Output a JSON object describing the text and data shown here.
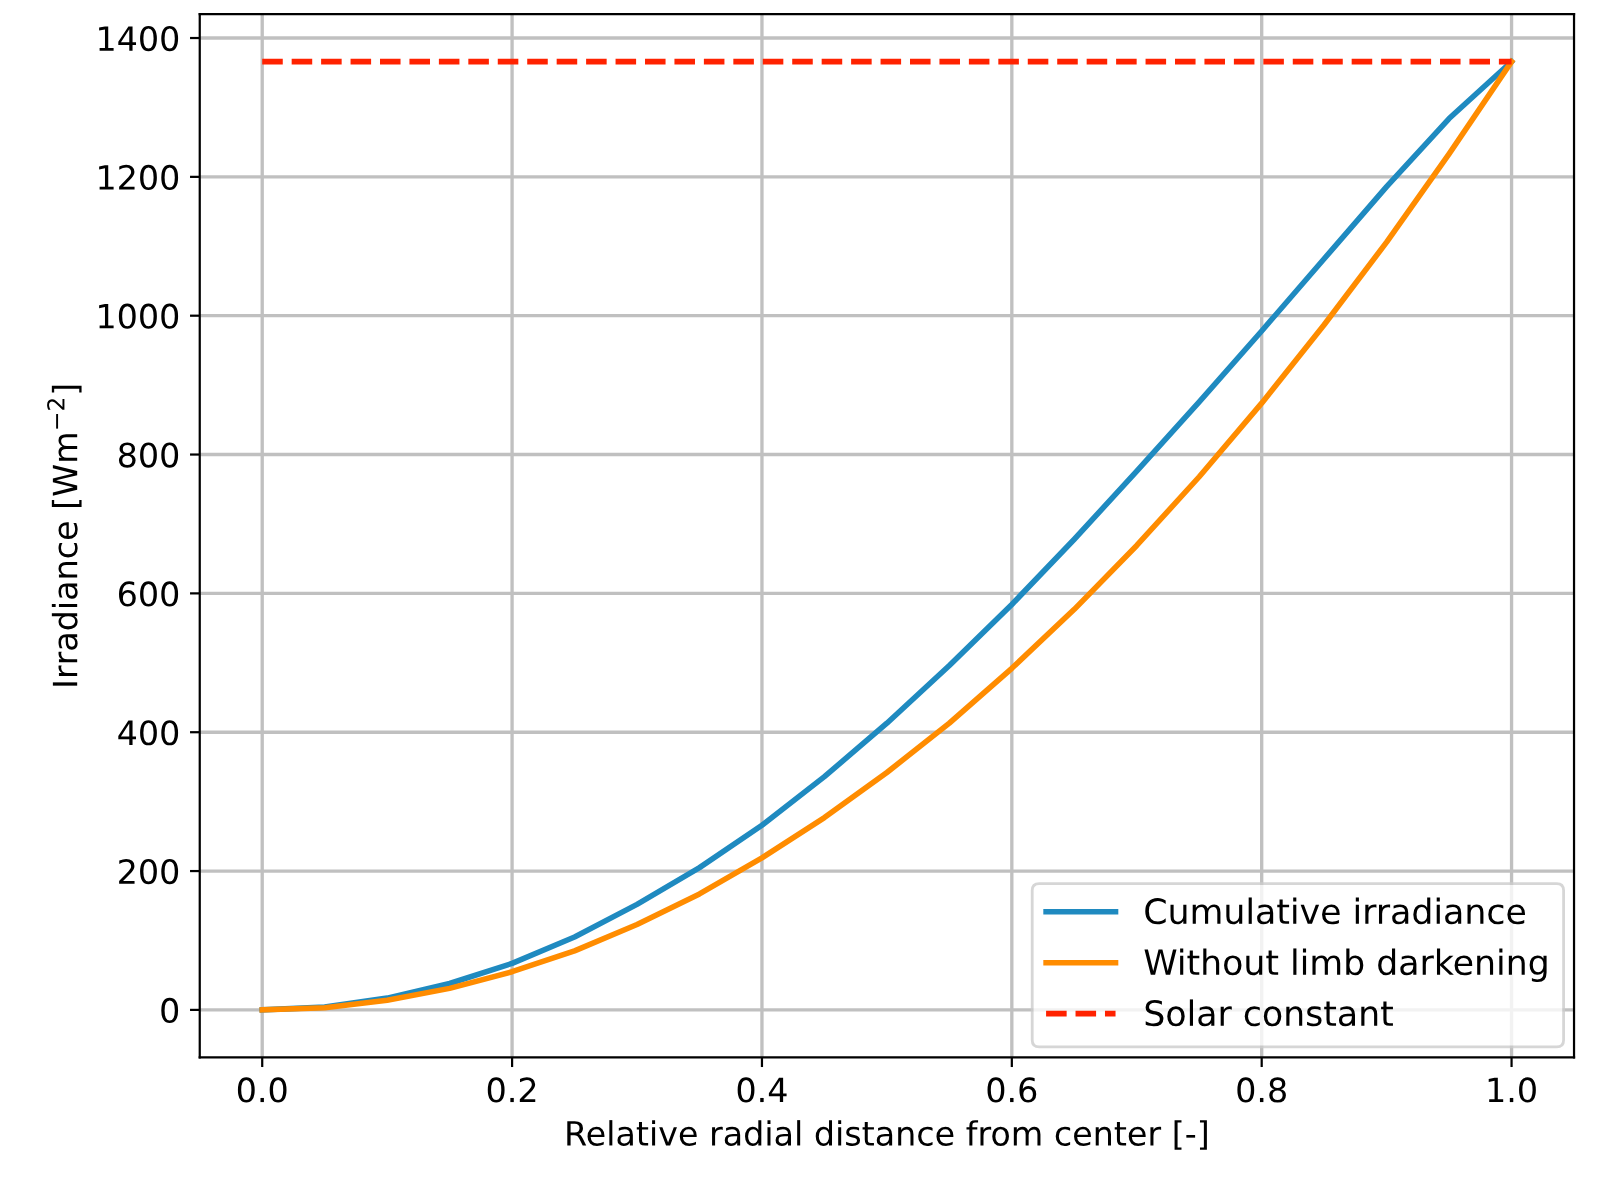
{
  "chart_data": {
    "type": "line",
    "xlabel": "Relative radial distance from center [-]",
    "ylabel": "Irradiance [Wm$^{−2}$]",
    "x": [
      0,
      0.05,
      0.1,
      0.15,
      0.2,
      0.25,
      0.3,
      0.35,
      0.4,
      0.45,
      0.5,
      0.55,
      0.6,
      0.65,
      0.7,
      0.75,
      0.8,
      0.85,
      0.9,
      0.95,
      1
    ],
    "series": [
      {
        "name": "Cumulative irradiance",
        "color": "#1f8ac0",
        "values": [
          0,
          4,
          17,
          38,
          67,
          105,
          152,
          205,
          266,
          336,
          413,
          496,
          584,
          678,
          776,
          876,
          978,
          1082,
          1186,
          1284,
          1366
        ]
      },
      {
        "name": "Without limb darkening",
        "color": "#ff8c00",
        "values": [
          0,
          3,
          14,
          31,
          55,
          85,
          123,
          167,
          219,
          277,
          342,
          413,
          492,
          577,
          669,
          768,
          874,
          987,
          1106,
          1233,
          1366
        ]
      },
      {
        "name": "Solar constant",
        "color": "#ff2200",
        "line_style": "dashed",
        "x": [
          0,
          1
        ],
        "values": [
          1366,
          1366
        ]
      }
    ],
    "xlim": [
      -0.05,
      1.05
    ],
    "ylim": [
      -68.3,
      1434.3
    ],
    "xticks": [
      {
        "value": 0,
        "label": "0.0"
      },
      {
        "value": 0.2,
        "label": "0.2"
      },
      {
        "value": 0.4,
        "label": "0.4"
      },
      {
        "value": 0.6,
        "label": "0.6"
      },
      {
        "value": 0.8,
        "label": "0.8"
      },
      {
        "value": 1,
        "label": "1.0"
      }
    ],
    "yticks": [
      0,
      200,
      400,
      600,
      800,
      1000,
      1200,
      1400
    ],
    "grid": true,
    "legend": "lower right",
    "marker": "none"
  }
}
